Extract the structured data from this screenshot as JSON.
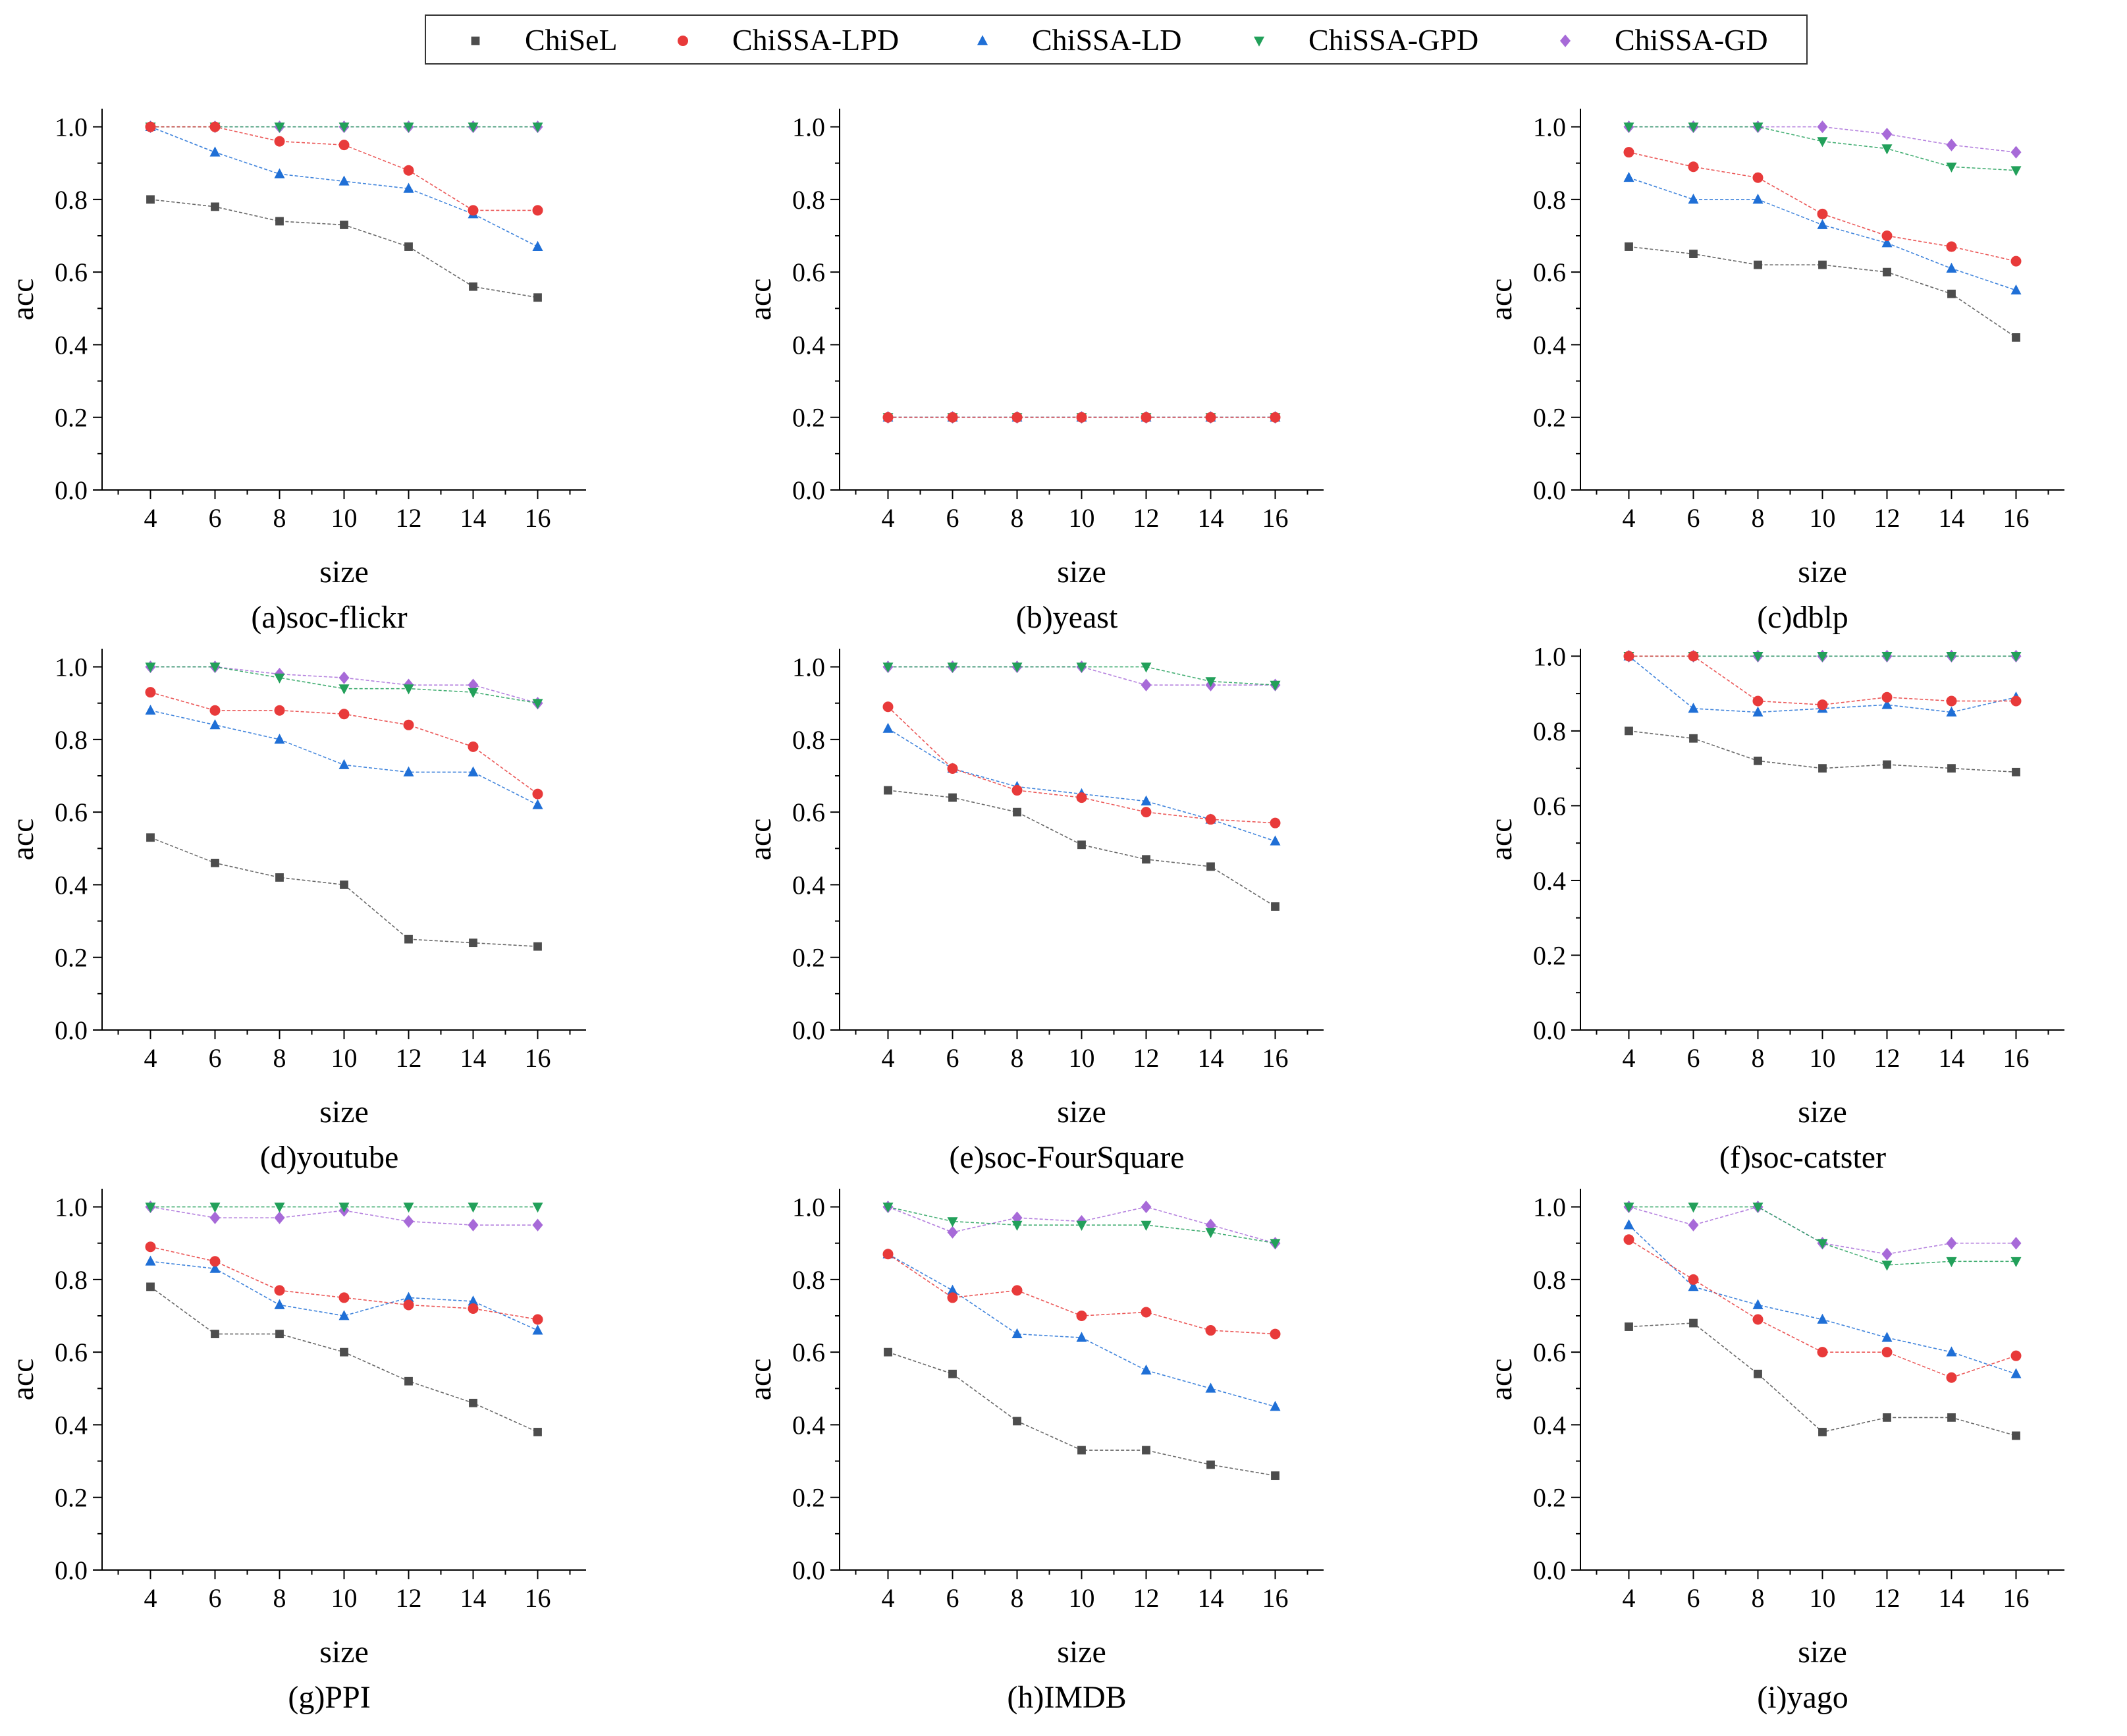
{
  "legend": [
    {
      "name": "ChiSeL",
      "color": "#4d4d4d",
      "marker": "square"
    },
    {
      "name": "ChiSSA-LPD",
      "color": "#e83a3a",
      "marker": "circle"
    },
    {
      "name": "ChiSSA-LD",
      "color": "#1f6fd6",
      "marker": "triangle-up"
    },
    {
      "name": "ChiSSA-GPD",
      "color": "#22a05a",
      "marker": "triangle-down"
    },
    {
      "name": "ChiSSA-GD",
      "color": "#a76ad8",
      "marker": "diamond"
    }
  ],
  "chart_data": [
    {
      "type": "line",
      "caption": "(a)soc-flickr",
      "xlabel": "size",
      "ylabel": "acc",
      "x": [
        4,
        6,
        8,
        10,
        12,
        14,
        16
      ],
      "xlim": [
        2.5,
        17.5
      ],
      "ylim": [
        0,
        1.05
      ],
      "yticks": [
        "0.0",
        "0.2",
        "0.4",
        "0.6",
        "0.8",
        "1.0"
      ],
      "series": [
        {
          "name": "ChiSeL",
          "values": [
            0.8,
            0.78,
            0.74,
            0.73,
            0.67,
            0.56,
            0.53
          ]
        },
        {
          "name": "ChiSSA-LPD",
          "values": [
            1.0,
            1.0,
            0.96,
            0.95,
            0.88,
            0.77,
            0.77
          ]
        },
        {
          "name": "ChiSSA-LD",
          "values": [
            1.0,
            0.93,
            0.87,
            0.85,
            0.83,
            0.76,
            0.67
          ]
        },
        {
          "name": "ChiSSA-GPD",
          "values": [
            1.0,
            1.0,
            1.0,
            1.0,
            1.0,
            1.0,
            1.0
          ]
        },
        {
          "name": "ChiSSA-GD",
          "values": [
            1.0,
            1.0,
            1.0,
            1.0,
            1.0,
            1.0,
            1.0
          ]
        }
      ]
    },
    {
      "type": "line",
      "caption": "(b)yeast",
      "xlabel": "size",
      "ylabel": "acc",
      "x": [
        4,
        6,
        8,
        10,
        12,
        14,
        16
      ],
      "xlim": [
        2.5,
        17.5
      ],
      "ylim": [
        0,
        1.05
      ],
      "yticks": [
        "0.0",
        "0.2",
        "0.4",
        "0.6",
        "0.8",
        "1.0"
      ],
      "series": [
        {
          "name": "ChiSeL",
          "values": [
            0.2,
            0.2,
            0.2,
            0.2,
            0.2,
            0.2,
            0.2
          ]
        },
        {
          "name": "ChiSSA-LPD",
          "values": [
            0.2,
            0.2,
            0.2,
            0.2,
            0.2,
            0.2,
            0.2
          ]
        },
        {
          "name": "ChiSSA-LD",
          "values": [
            0.2,
            0.2,
            0.2,
            0.2,
            0.2,
            0.2,
            0.2
          ]
        },
        {
          "name": "ChiSSA-GPD",
          "values": [
            0.2,
            0.2,
            0.2,
            0.2,
            0.2,
            0.2,
            0.2
          ]
        },
        {
          "name": "ChiSSA-GD",
          "values": [
            0.2,
            0.2,
            0.2,
            0.2,
            0.2,
            0.2,
            0.2
          ]
        }
      ]
    },
    {
      "type": "line",
      "caption": "(c)dblp",
      "xlabel": "size",
      "ylabel": "acc",
      "x": [
        4,
        6,
        8,
        10,
        12,
        14,
        16
      ],
      "xlim": [
        2.5,
        17.5
      ],
      "ylim": [
        0,
        1.05
      ],
      "yticks": [
        "0.0",
        "0.2",
        "0.4",
        "0.6",
        "0.8",
        "1.0"
      ],
      "series": [
        {
          "name": "ChiSeL",
          "values": [
            0.67,
            0.65,
            0.62,
            0.62,
            0.6,
            0.54,
            0.42
          ]
        },
        {
          "name": "ChiSSA-LPD",
          "values": [
            0.93,
            0.89,
            0.86,
            0.76,
            0.7,
            0.67,
            0.63
          ]
        },
        {
          "name": "ChiSSA-LD",
          "values": [
            0.86,
            0.8,
            0.8,
            0.73,
            0.68,
            0.61,
            0.55
          ]
        },
        {
          "name": "ChiSSA-GPD",
          "values": [
            1.0,
            1.0,
            1.0,
            0.96,
            0.94,
            0.89,
            0.88
          ]
        },
        {
          "name": "ChiSSA-GD",
          "values": [
            1.0,
            1.0,
            1.0,
            1.0,
            0.98,
            0.95,
            0.93
          ]
        }
      ]
    },
    {
      "type": "line",
      "caption": "(d)youtube",
      "xlabel": "size",
      "ylabel": "acc",
      "x": [
        4,
        6,
        8,
        10,
        12,
        14,
        16
      ],
      "xlim": [
        2.5,
        17.5
      ],
      "ylim": [
        0,
        1.05
      ],
      "yticks": [
        "0.0",
        "0.2",
        "0.4",
        "0.6",
        "0.8",
        "1.0"
      ],
      "series": [
        {
          "name": "ChiSeL",
          "values": [
            0.53,
            0.46,
            0.42,
            0.4,
            0.25,
            0.24,
            0.23
          ]
        },
        {
          "name": "ChiSSA-LPD",
          "values": [
            0.93,
            0.88,
            0.88,
            0.87,
            0.84,
            0.78,
            0.65
          ]
        },
        {
          "name": "ChiSSA-LD",
          "values": [
            0.88,
            0.84,
            0.8,
            0.73,
            0.71,
            0.71,
            0.62
          ]
        },
        {
          "name": "ChiSSA-GPD",
          "values": [
            1.0,
            1.0,
            0.97,
            0.94,
            0.94,
            0.93,
            0.9
          ]
        },
        {
          "name": "ChiSSA-GD",
          "values": [
            1.0,
            1.0,
            0.98,
            0.97,
            0.95,
            0.95,
            0.9
          ]
        }
      ]
    },
    {
      "type": "line",
      "caption": "(e)soc-FourSquare",
      "xlabel": "size",
      "ylabel": "acc",
      "x": [
        4,
        6,
        8,
        10,
        12,
        14,
        16
      ],
      "xlim": [
        2.5,
        17.5
      ],
      "ylim": [
        0,
        1.05
      ],
      "yticks": [
        "0.0",
        "0.2",
        "0.4",
        "0.6",
        "0.8",
        "1.0"
      ],
      "series": [
        {
          "name": "ChiSeL",
          "values": [
            0.66,
            0.64,
            0.6,
            0.51,
            0.47,
            0.45,
            0.34
          ]
        },
        {
          "name": "ChiSSA-LPD",
          "values": [
            0.89,
            0.72,
            0.66,
            0.64,
            0.6,
            0.58,
            0.57
          ]
        },
        {
          "name": "ChiSSA-LD",
          "values": [
            0.83,
            0.72,
            0.67,
            0.65,
            0.63,
            0.58,
            0.52
          ]
        },
        {
          "name": "ChiSSA-GPD",
          "values": [
            1.0,
            1.0,
            1.0,
            1.0,
            1.0,
            0.96,
            0.95
          ]
        },
        {
          "name": "ChiSSA-GD",
          "values": [
            1.0,
            1.0,
            1.0,
            1.0,
            0.95,
            0.95,
            0.95
          ]
        }
      ]
    },
    {
      "type": "line",
      "caption": "(f)soc-catster",
      "xlabel": "size",
      "ylabel": "acc",
      "x": [
        4,
        6,
        8,
        10,
        12,
        14,
        16
      ],
      "xlim": [
        2.5,
        17.5
      ],
      "ylim": [
        0,
        1.02
      ],
      "yticks": [
        "0.0",
        "0.2",
        "0.4",
        "0.6",
        "0.8",
        "1.0"
      ],
      "series": [
        {
          "name": "ChiSeL",
          "values": [
            0.8,
            0.78,
            0.72,
            0.7,
            0.71,
            0.7,
            0.69
          ]
        },
        {
          "name": "ChiSSA-LPD",
          "values": [
            1.0,
            1.0,
            0.88,
            0.87,
            0.89,
            0.88,
            0.88
          ]
        },
        {
          "name": "ChiSSA-LD",
          "values": [
            1.0,
            0.86,
            0.85,
            0.86,
            0.87,
            0.85,
            0.89
          ]
        },
        {
          "name": "ChiSSA-GPD",
          "values": [
            1.0,
            1.0,
            1.0,
            1.0,
            1.0,
            1.0,
            1.0
          ]
        },
        {
          "name": "ChiSSA-GD",
          "values": [
            1.0,
            1.0,
            1.0,
            1.0,
            1.0,
            1.0,
            1.0
          ]
        }
      ]
    },
    {
      "type": "line",
      "caption": "(g)PPI",
      "xlabel": "size",
      "ylabel": "acc",
      "x": [
        4,
        6,
        8,
        10,
        12,
        14,
        16
      ],
      "xlim": [
        2.5,
        17.5
      ],
      "ylim": [
        0,
        1.05
      ],
      "yticks": [
        "0.0",
        "0.2",
        "0.4",
        "0.6",
        "0.8",
        "1.0"
      ],
      "series": [
        {
          "name": "ChiSeL",
          "values": [
            0.78,
            0.65,
            0.65,
            0.6,
            0.52,
            0.46,
            0.38
          ]
        },
        {
          "name": "ChiSSA-LPD",
          "values": [
            0.89,
            0.85,
            0.77,
            0.75,
            0.73,
            0.72,
            0.69
          ]
        },
        {
          "name": "ChiSSA-LD",
          "values": [
            0.85,
            0.83,
            0.73,
            0.7,
            0.75,
            0.74,
            0.66
          ]
        },
        {
          "name": "ChiSSA-GPD",
          "values": [
            1.0,
            1.0,
            1.0,
            1.0,
            1.0,
            1.0,
            1.0
          ]
        },
        {
          "name": "ChiSSA-GD",
          "values": [
            1.0,
            0.97,
            0.97,
            0.99,
            0.96,
            0.95,
            0.95
          ]
        }
      ]
    },
    {
      "type": "line",
      "caption": "(h)IMDB",
      "xlabel": "size",
      "ylabel": "acc",
      "x": [
        4,
        6,
        8,
        10,
        12,
        14,
        16
      ],
      "xlim": [
        2.5,
        17.5
      ],
      "ylim": [
        0,
        1.05
      ],
      "yticks": [
        "0.0",
        "0.2",
        "0.4",
        "0.6",
        "0.8",
        "1.0"
      ],
      "series": [
        {
          "name": "ChiSeL",
          "values": [
            0.6,
            0.54,
            0.41,
            0.33,
            0.33,
            0.29,
            0.26
          ]
        },
        {
          "name": "ChiSSA-LPD",
          "values": [
            0.87,
            0.75,
            0.77,
            0.7,
            0.71,
            0.66,
            0.65
          ]
        },
        {
          "name": "ChiSSA-LD",
          "values": [
            0.87,
            0.77,
            0.65,
            0.64,
            0.55,
            0.5,
            0.45
          ]
        },
        {
          "name": "ChiSSA-GPD",
          "values": [
            1.0,
            0.96,
            0.95,
            0.95,
            0.95,
            0.93,
            0.9
          ]
        },
        {
          "name": "ChiSSA-GD",
          "values": [
            1.0,
            0.93,
            0.97,
            0.96,
            1.0,
            0.95,
            0.9
          ]
        }
      ]
    },
    {
      "type": "line",
      "caption": "(i)yago",
      "xlabel": "size",
      "ylabel": "acc",
      "x": [
        4,
        6,
        8,
        10,
        12,
        14,
        16
      ],
      "xlim": [
        2.5,
        17.5
      ],
      "ylim": [
        0,
        1.05
      ],
      "yticks": [
        "0.0",
        "0.2",
        "0.4",
        "0.6",
        "0.8",
        "1.0"
      ],
      "series": [
        {
          "name": "ChiSeL",
          "values": [
            0.67,
            0.68,
            0.54,
            0.38,
            0.42,
            0.42,
            0.37
          ]
        },
        {
          "name": "ChiSSA-LPD",
          "values": [
            0.91,
            0.8,
            0.69,
            0.6,
            0.6,
            0.53,
            0.59
          ]
        },
        {
          "name": "ChiSSA-LD",
          "values": [
            0.95,
            0.78,
            0.73,
            0.69,
            0.64,
            0.6,
            0.54
          ]
        },
        {
          "name": "ChiSSA-GPD",
          "values": [
            1.0,
            1.0,
            1.0,
            0.9,
            0.84,
            0.85,
            0.85
          ]
        },
        {
          "name": "ChiSSA-GD",
          "values": [
            1.0,
            0.95,
            1.0,
            0.9,
            0.87,
            0.9,
            0.9
          ]
        }
      ]
    }
  ]
}
